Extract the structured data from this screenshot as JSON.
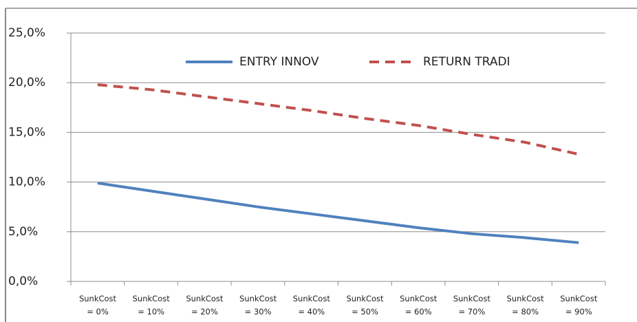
{
  "chart_data": {
    "type": "line",
    "categories": [
      "SunkCost\n= 0%",
      "SunkCost\n= 10%",
      "SunkCost\n= 20%",
      "SunkCost\n= 30%",
      "SunkCost\n= 40%",
      "SunkCost\n= 50%",
      "SunkCost\n= 60%",
      "SunkCost\n= 70%",
      "SunkCost\n= 80%",
      "SunkCost\n= 90%"
    ],
    "series": [
      {
        "name": "ENTRY INNOV",
        "color": "#4f81bd",
        "dashed": false,
        "values": [
          9.9,
          9.1,
          8.3,
          7.5,
          6.8,
          6.1,
          5.4,
          4.8,
          4.4,
          3.9
        ]
      },
      {
        "name": "RETURN TRADI",
        "color": "#c0504d",
        "dashed": true,
        "values": [
          19.8,
          19.3,
          18.6,
          17.9,
          17.2,
          16.4,
          15.7,
          14.8,
          14.0,
          12.8
        ]
      }
    ],
    "ylim": [
      0,
      25
    ],
    "yticks": [
      {
        "value": 0,
        "label": "0,0%"
      },
      {
        "value": 5,
        "label": "5,0%"
      },
      {
        "value": 10,
        "label": "10,0%"
      },
      {
        "value": 15,
        "label": "15,0%"
      },
      {
        "value": 20,
        "label": "20,0%"
      },
      {
        "value": 25,
        "label": "25,0%"
      }
    ],
    "grid": true,
    "legend": "top"
  }
}
